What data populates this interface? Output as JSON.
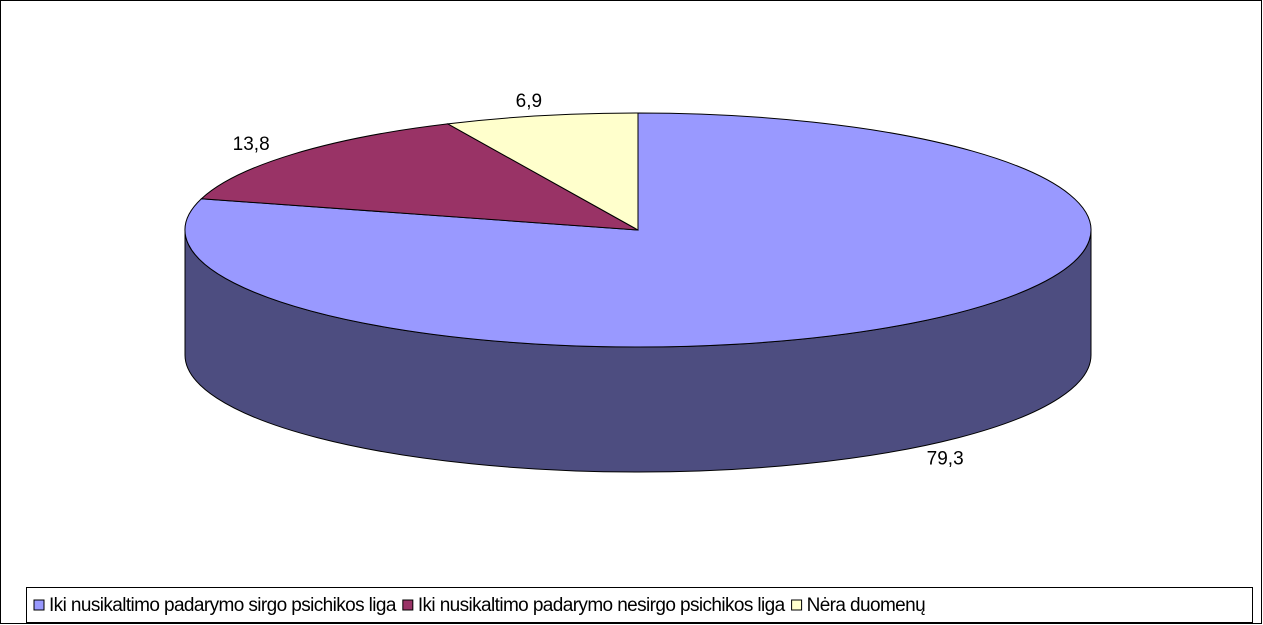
{
  "chart_data": {
    "type": "pie3d",
    "categories": [
      "Iki nusikaltimo padarymo sirgo psichikos liga",
      "Iki nusikaltimo padarymo nesirgo psichikos liga",
      "Nėra duomenų"
    ],
    "values": [
      79.3,
      13.8,
      6.9
    ],
    "value_labels": [
      "79,3",
      "13,8",
      "6,9"
    ],
    "colors": [
      "#9999ff",
      "#993366",
      "#ffffcc"
    ],
    "legend": "bottom"
  }
}
